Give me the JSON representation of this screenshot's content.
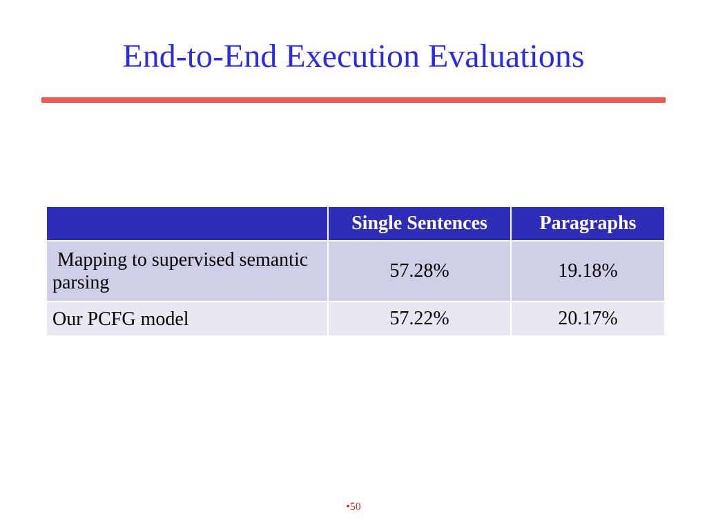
{
  "slide": {
    "title": "End-to-End Execution Evaluations",
    "page_number": "•50"
  },
  "colors": {
    "title": "#2B2BE0",
    "rule": "#F25A52",
    "header_bg": "#2D2DB8",
    "row_odd_bg": "#CFCFE8",
    "row_even_bg": "#E8E8F3",
    "page_number": "#C62A2A"
  },
  "table": {
    "headers": [
      "",
      "Single Sentences",
      "Paragraphs"
    ],
    "rows": [
      {
        "method": " Mapping to supervised semantic parsing",
        "single_sentences": "57.28%",
        "paragraphs": "19.18%"
      },
      {
        "method": "Our PCFG model",
        "single_sentences": "57.22%",
        "paragraphs": "20.17%"
      }
    ]
  }
}
